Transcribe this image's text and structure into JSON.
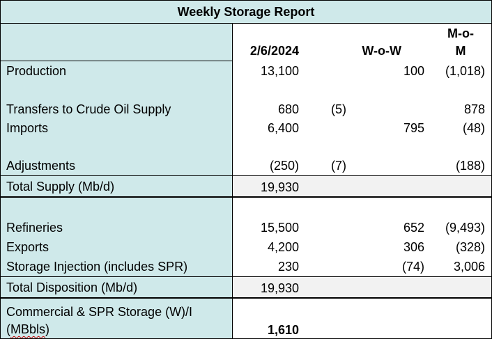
{
  "title": "Weekly Storage Report",
  "headers": {
    "date": "2/6/2024",
    "wow": "W-o-W",
    "mom_line1": "M-o-",
    "mom_line2": "M"
  },
  "supply_rows": [
    {
      "label": "Production",
      "date": "13,100",
      "wow": "100",
      "mom": "(1,018)"
    },
    {
      "label": "Transfers to Crude Oil Supply",
      "date": "680",
      "wow": "(5)",
      "mom": "878"
    },
    {
      "label": "Imports",
      "date": "6,400",
      "wow": "795",
      "mom": "(48)"
    },
    {
      "label": "Adjustments",
      "date": "(250)",
      "wow": "(7)",
      "mom": "(188)"
    }
  ],
  "total_supply": {
    "label": "Total Supply (Mb/d)",
    "date": "19,930"
  },
  "disposition_rows": [
    {
      "label": "Refineries",
      "date": "15,500",
      "wow": "652",
      "mom": "(9,493)"
    },
    {
      "label": "Exports",
      "date": "4,200",
      "wow": "306",
      "mom": "(328)"
    },
    {
      "label": "Storage Injection (includes SPR)",
      "date": "230",
      "wow": "(74)",
      "mom": "3,006"
    }
  ],
  "total_disposition": {
    "label": "Total Disposition (Mb/d)",
    "date": "19,930"
  },
  "storage": {
    "label_line1": "Commercial & SPR Storage (W)/I",
    "label_line2_prefix": "(",
    "label_line2_word": "MBbls",
    "label_line2_suffix": ")",
    "date": "1,610"
  },
  "colors": {
    "label_bg": "#cfe9ea",
    "total_bg": "#f2f2f2"
  }
}
